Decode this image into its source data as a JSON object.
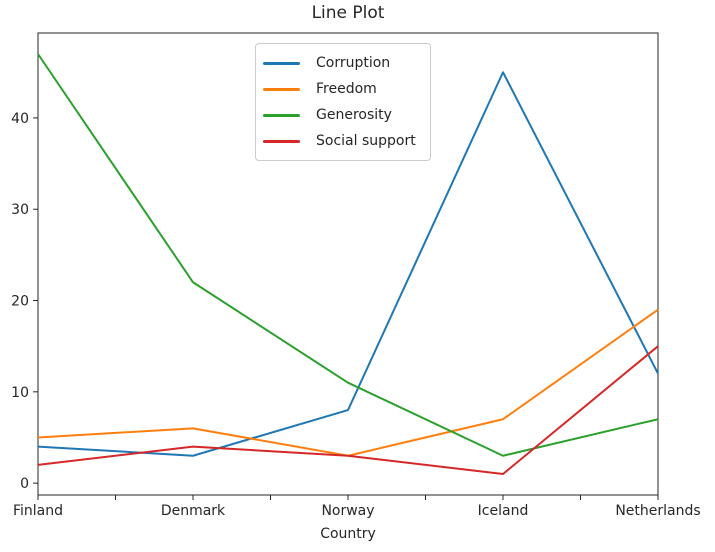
{
  "chart_data": {
    "type": "line",
    "title": "Line Plot",
    "xlabel": "Country",
    "ylabel": "",
    "categories": [
      "Finland",
      "Denmark",
      "Norway",
      "Iceland",
      "Netherlands"
    ],
    "series": [
      {
        "name": "Corruption",
        "color": "#1f77b4",
        "values": [
          4,
          3,
          8,
          45,
          12
        ]
      },
      {
        "name": "Freedom",
        "color": "#ff7f0e",
        "values": [
          5,
          6,
          3,
          7,
          19
        ]
      },
      {
        "name": "Generosity",
        "color": "#2ca02c",
        "values": [
          47,
          22,
          11,
          3,
          7
        ]
      },
      {
        "name": "Social support",
        "color": "#d62728",
        "values": [
          2,
          4,
          3,
          1,
          15
        ]
      }
    ],
    "yticks": [
      0,
      10,
      20,
      30,
      40
    ],
    "ylim": [
      -1.3,
      49.3
    ],
    "grid": false,
    "legend_position": "upper center",
    "axis_color": "#262626"
  }
}
